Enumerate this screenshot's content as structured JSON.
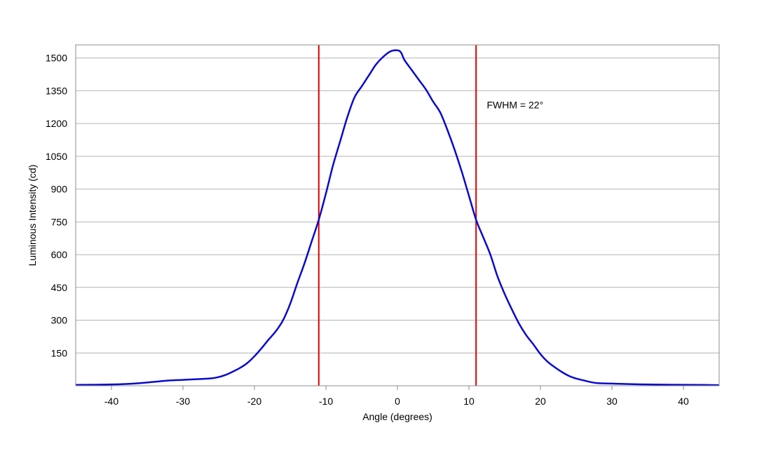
{
  "chart_data": {
    "type": "line",
    "title": "",
    "xlabel": "Angle (degrees)",
    "ylabel": "Luminous Intensity (cd)",
    "xlim": [
      -45,
      45
    ],
    "ylim": [
      0,
      1560
    ],
    "xticks": [
      -40,
      -30,
      -20,
      -10,
      0,
      10,
      20,
      30,
      40
    ],
    "yticks": [
      150,
      300,
      450,
      600,
      750,
      900,
      1050,
      1200,
      1350,
      1500
    ],
    "grid": "horizontal",
    "legend": "none",
    "series": [
      {
        "color": "#0a0acc",
        "x": [
          -45,
          -42,
          -40,
          -38,
          -36,
          -34,
          -32,
          -30,
          -28,
          -26,
          -25,
          -24,
          -23,
          -22,
          -21,
          -20,
          -19,
          -18,
          -17,
          -16,
          -15,
          -14,
          -13,
          -12,
          -11,
          -10,
          -9,
          -8,
          -7,
          -6,
          -5,
          -4,
          -3,
          -2,
          -1,
          0,
          0.5,
          1,
          2,
          3,
          4,
          5,
          6,
          7,
          8,
          9,
          10,
          11,
          12,
          13,
          14,
          15,
          16,
          17,
          18,
          19,
          20,
          21,
          22,
          23,
          24,
          25,
          26,
          27,
          28,
          30,
          32,
          35,
          38,
          42,
          45
        ],
        "y": [
          4,
          5,
          6,
          8,
          12,
          18,
          24,
          27,
          30,
          34,
          40,
          50,
          65,
          82,
          104,
          135,
          172,
          212,
          250,
          300,
          375,
          470,
          560,
          660,
          760,
          880,
          1010,
          1120,
          1230,
          1320,
          1370,
          1420,
          1470,
          1505,
          1530,
          1535,
          1525,
          1490,
          1445,
          1400,
          1355,
          1300,
          1250,
          1170,
          1080,
          980,
          870,
          760,
          680,
          600,
          500,
          420,
          350,
          285,
          232,
          190,
          145,
          110,
          85,
          63,
          45,
          33,
          25,
          17,
          12,
          10,
          8,
          6,
          5,
          4,
          3
        ]
      }
    ],
    "vlines": [
      {
        "x": -11,
        "color": "#dd0000"
      },
      {
        "x": 11,
        "color": "#dd0000"
      }
    ],
    "annotations": [
      {
        "text": "FWHM = 22°",
        "x": 12.5,
        "y": 1270
      }
    ]
  }
}
